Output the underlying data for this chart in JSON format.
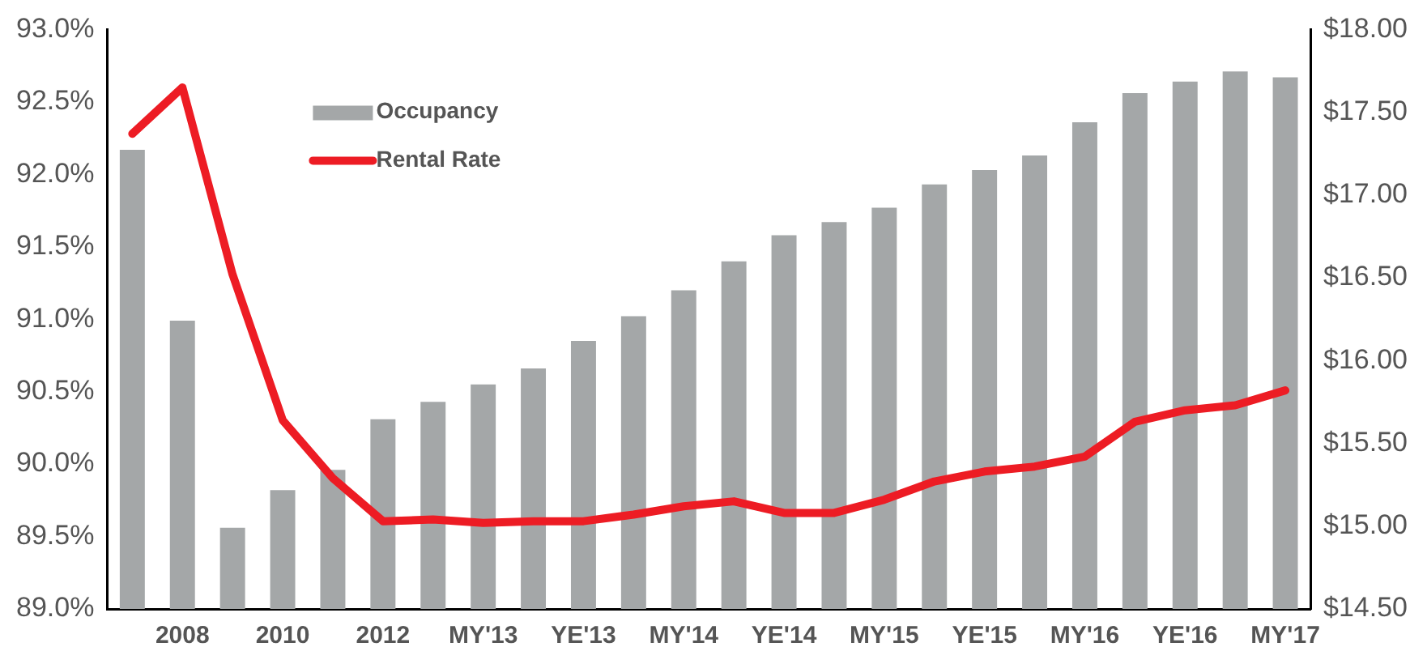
{
  "chart_data": {
    "type": "bar",
    "categories": [
      null,
      "2008",
      null,
      "2010",
      null,
      "2012",
      null,
      "MY'13",
      null,
      "YE'13",
      null,
      "MY'14",
      null,
      "YE'14",
      null,
      "MY'15",
      null,
      "YE'15",
      null,
      "MY'16",
      null,
      "YE'16",
      null,
      "MY'17"
    ],
    "series": [
      {
        "name": "Occupancy",
        "color": "#a4a7a8",
        "values": [
          92.17,
          90.99,
          89.56,
          89.82,
          89.96,
          90.31,
          90.43,
          90.55,
          90.66,
          90.85,
          91.02,
          91.2,
          91.4,
          91.58,
          91.67,
          91.77,
          91.93,
          92.03,
          92.13,
          92.36,
          92.56,
          92.64,
          92.71,
          92.67
        ]
      },
      {
        "name": "Rental Rate",
        "type": "line",
        "axis": "y2",
        "color": "#ed1c24",
        "values": [
          17.37,
          17.65,
          16.52,
          15.64,
          15.29,
          15.03,
          15.04,
          15.02,
          15.03,
          15.03,
          15.07,
          15.12,
          15.15,
          15.08,
          15.08,
          15.16,
          15.27,
          15.33,
          15.36,
          15.42,
          15.63,
          15.7,
          15.73,
          15.82
        ]
      }
    ],
    "ylim": [
      89,
      93
    ],
    "yticks": [
      {
        "value": 89,
        "label": "89.0%"
      },
      {
        "value": 89.5,
        "label": "89.5%"
      },
      {
        "value": 90,
        "label": "90.0%"
      },
      {
        "value": 90.5,
        "label": "90.5%"
      },
      {
        "value": 91,
        "label": "91.0%"
      },
      {
        "value": 91.5,
        "label": "91.5%"
      },
      {
        "value": 92,
        "label": "92.0%"
      },
      {
        "value": 92.5,
        "label": "92.5%"
      },
      {
        "value": 93,
        "label": "93.0%"
      }
    ],
    "y2lim": [
      14.5,
      18
    ],
    "y2ticks": [
      {
        "value": 14.5,
        "label": "$14.50"
      },
      {
        "value": 15,
        "label": "$15.00"
      },
      {
        "value": 15.5,
        "label": "$15.50"
      },
      {
        "value": 16,
        "label": "$16.00"
      },
      {
        "value": 16.5,
        "label": "$16.50"
      },
      {
        "value": 17,
        "label": "$17.00"
      },
      {
        "value": 17.5,
        "label": "$17.50"
      },
      {
        "value": 18,
        "label": "$18.00"
      }
    ],
    "grid": false,
    "legend": "top left",
    "marker": "none"
  }
}
